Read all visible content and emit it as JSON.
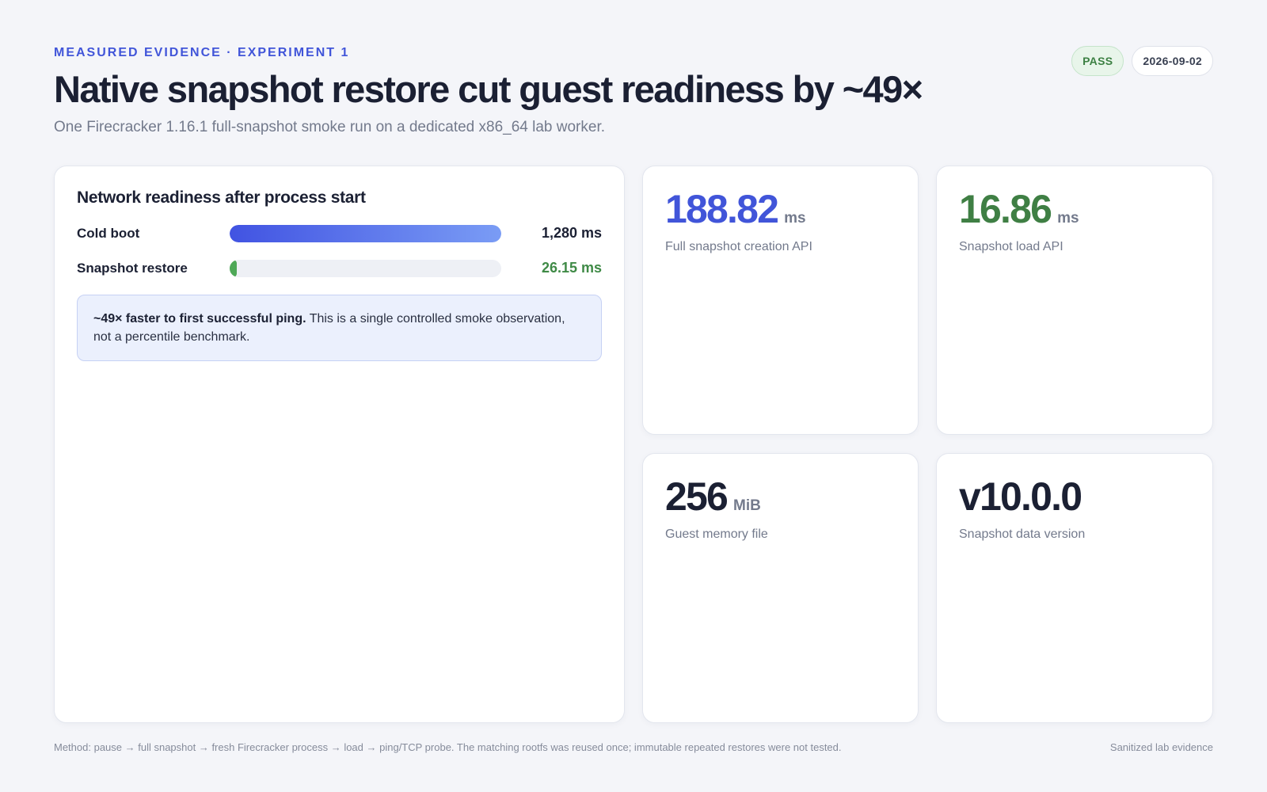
{
  "header": {
    "eyebrow": "Measured evidence · Experiment 1",
    "title": "Native snapshot restore cut guest readiness by ~49×",
    "subtitle": "One Firecracker 1.16.1 full-snapshot smoke run on a dedicated x86_64 lab worker."
  },
  "badges": {
    "status": "PASS",
    "date": "2026-09-02"
  },
  "readiness": {
    "title": "Network readiness after process start",
    "bars": [
      {
        "label": "Cold boot",
        "value_ms": 1280,
        "value_text": "1,280 ms"
      },
      {
        "label": "Snapshot restore",
        "value_ms": 26.15,
        "value_text": "26.15 ms"
      }
    ],
    "max_ms": 1280,
    "callout_strong": "~49× faster to first successful ping.",
    "callout_text": " This is a single controlled smoke observation, not a percentile benchmark."
  },
  "stats": [
    {
      "value": "188.82",
      "unit": "ms",
      "label": "Full snapshot creation API"
    },
    {
      "value": "16.86",
      "unit": "ms",
      "label": "Snapshot load API"
    },
    {
      "value": "256",
      "unit": "MiB",
      "label": "Guest memory file"
    },
    {
      "value": "v10.0.0",
      "unit": "",
      "label": "Snapshot data version"
    }
  ],
  "footer": {
    "method": "Method: pause → full snapshot → fresh Firecracker process → load → ping/TCP probe. The matching rootfs was reused once; immutable repeated restores were not tested.",
    "note": "Sanitized lab evidence"
  },
  "colors": {
    "accent": "#4155d9",
    "success": "#3f8a46",
    "background": "#f4f5f9"
  }
}
